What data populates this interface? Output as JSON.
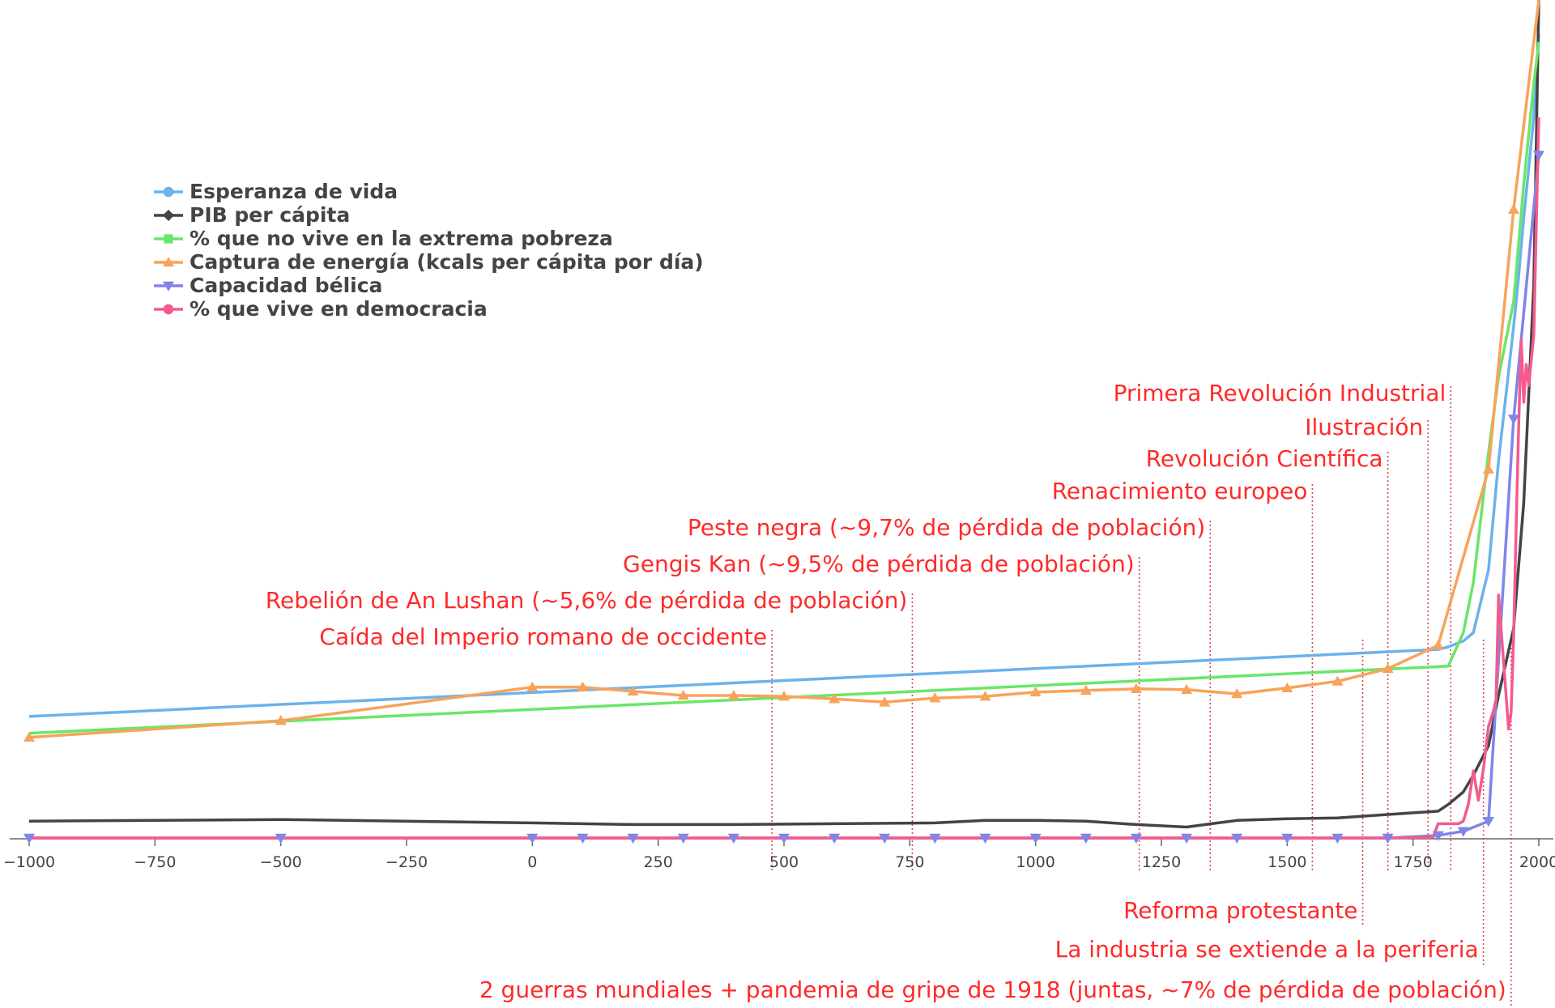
{
  "chart_data": {
    "type": "line",
    "title": "",
    "xlabel": "",
    "ylabel": "",
    "xlim": [
      -1000,
      2005
    ],
    "ylim": [
      0,
      100
    ],
    "x_ticks": [
      -1000,
      -750,
      -500,
      -250,
      0,
      250,
      500,
      750,
      1000,
      1250,
      1500,
      1750,
      2000
    ],
    "x_tick_labels": [
      "−1000",
      "−750",
      "−500",
      "−250",
      "0",
      "250",
      "500",
      "750",
      "1000",
      "1250",
      "1500",
      "1750",
      "2000"
    ],
    "grid": false,
    "legend_position": "top-left",
    "series": [
      {
        "name": "Esperanza de vida",
        "color": "#6cb2ec",
        "marker": "circle",
        "x": [
          -1000,
          1800,
          1820,
          1850,
          1870,
          1900,
          1920,
          1950,
          1960,
          1970,
          1990,
          2000
        ],
        "y": [
          14.5,
          22.5,
          22.8,
          23.5,
          24.5,
          32,
          45,
          61,
          67,
          74,
          86,
          96
        ]
      },
      {
        "name": "PIB per cápita",
        "color": "#434348",
        "marker": "diamond",
        "x": [
          -1000,
          -500,
          0,
          200,
          400,
          600,
          800,
          900,
          1000,
          1100,
          1200,
          1300,
          1350,
          1400,
          1500,
          1600,
          1700,
          1800,
          1820,
          1850,
          1870,
          1900,
          1920,
          1950,
          1970,
          1990,
          2000
        ],
        "y": [
          2,
          2.2,
          1.8,
          1.6,
          1.6,
          1.7,
          1.8,
          2.1,
          2.1,
          2,
          1.6,
          1.3,
          1.7,
          2.1,
          2.3,
          2.4,
          2.8,
          3.2,
          4,
          5.5,
          7.5,
          11,
          17,
          25,
          40,
          66,
          100
        ]
      },
      {
        "name": "% que no vive en la extrema pobreza",
        "color": "#6ae66a",
        "marker": "square",
        "x": [
          -1000,
          1820,
          1850,
          1870,
          1900,
          1920,
          1950,
          1970,
          1990,
          2000
        ],
        "y": [
          12.5,
          20.5,
          24.5,
          30.5,
          46,
          55,
          64,
          78,
          90,
          95
        ]
      },
      {
        "name": "Captura de energía (kcals per cápita por día)",
        "color": "#f7a35c",
        "marker": "triangle",
        "x": [
          -1000,
          -500,
          0,
          100,
          200,
          300,
          400,
          500,
          600,
          700,
          800,
          900,
          1000,
          1100,
          1200,
          1300,
          1400,
          1500,
          1600,
          1700,
          1800,
          1900,
          1950,
          2000
        ],
        "y": [
          12,
          14,
          18,
          18,
          17.5,
          17,
          17,
          16.9,
          16.6,
          16.2,
          16.7,
          16.9,
          17.4,
          17.6,
          17.8,
          17.7,
          17.2,
          17.9,
          18.7,
          20.2,
          23,
          44,
          75,
          100
        ]
      },
      {
        "name": "Capacidad bélica",
        "color": "#8085e9",
        "marker": "triangle-down",
        "x": [
          -1000,
          -500,
          0,
          100,
          200,
          300,
          400,
          500,
          600,
          700,
          800,
          900,
          1000,
          1100,
          1200,
          1300,
          1400,
          1500,
          1600,
          1700,
          1800,
          1850,
          1900,
          1950,
          2000
        ],
        "y": [
          0,
          0,
          0,
          0,
          0,
          0,
          0,
          0,
          0,
          0,
          0,
          0,
          0,
          0,
          0,
          0,
          0,
          0,
          0,
          0,
          0.3,
          0.8,
          2,
          50,
          81.5
        ]
      },
      {
        "name": "% que vive en democracia",
        "color": "#f45b8c",
        "marker": "circle",
        "x": [
          -1000,
          1700,
          1790,
          1800,
          1840,
          1850,
          1860,
          1870,
          1880,
          1890,
          1900,
          1910,
          1915,
          1920,
          1930,
          1940,
          1945,
          1950,
          1955,
          1960,
          1965,
          1970,
          1975,
          1980,
          1990,
          2000
        ],
        "y": [
          0,
          0,
          0.1,
          1.7,
          1.7,
          2,
          4,
          8,
          4.5,
          8.3,
          13.3,
          15.2,
          16.5,
          29,
          21,
          13,
          15,
          24,
          37,
          49,
          59.5,
          52,
          56.5,
          54,
          60,
          86
        ]
      }
    ],
    "annotations": [
      {
        "label": "Caída del Imperio romano de occidente",
        "x": 476,
        "position": "above"
      },
      {
        "label": "Rebelión de An Lushan (~5,6% de pérdida de población)",
        "x": 755,
        "position": "above"
      },
      {
        "label": "Gengis Kan (~9,5% de pérdida de población)",
        "x": 1206,
        "position": "above"
      },
      {
        "label": "Peste negra (~9,7% de pérdida de población)",
        "x": 1347,
        "position": "above"
      },
      {
        "label": "Renacimiento europeo",
        "x": 1550,
        "position": "above"
      },
      {
        "label": "Revolución Científica",
        "x": 1700,
        "position": "above"
      },
      {
        "label": "Ilustración",
        "x": 1780,
        "position": "above"
      },
      {
        "label": "Primera Revolución Industrial",
        "x": 1825,
        "position": "above"
      },
      {
        "label": "Reforma protestante",
        "x": 1650,
        "position": "below"
      },
      {
        "label": "La industria se extiende a la periferia",
        "x": 1890,
        "position": "below"
      },
      {
        "label": "2 guerras mundiales + pandemia de gripe de 1918 (juntas, ~7% de pérdida de población)",
        "x": 1945,
        "position": "below"
      }
    ]
  }
}
